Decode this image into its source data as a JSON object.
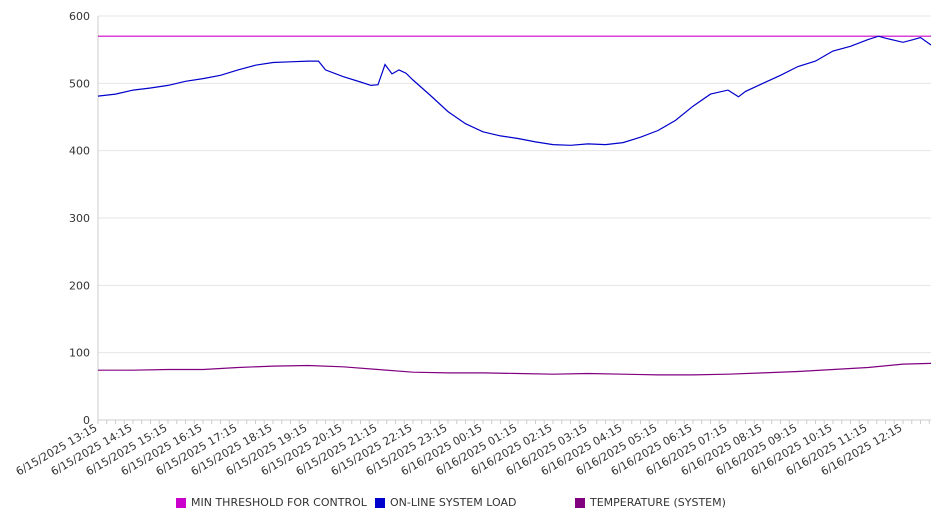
{
  "chart_data": {
    "type": "line",
    "title": "",
    "xlabel": "",
    "ylabel": "",
    "ylim": [
      0,
      600
    ],
    "yticks": [
      0,
      100,
      200,
      300,
      400,
      500,
      600
    ],
    "grid": true,
    "legend_position": "bottom",
    "x_labels": [
      "6/15/2025 13:15",
      "6/15/2025 14:15",
      "6/15/2025 15:15",
      "6/15/2025 16:15",
      "6/15/2025 17:15",
      "6/15/2025 18:15",
      "6/15/2025 19:15",
      "6/15/2025 20:15",
      "6/15/2025 21:15",
      "6/15/2025 22:15",
      "6/15/2025 23:15",
      "6/16/2025 00:15",
      "6/16/2025 01:15",
      "6/16/2025 02:15",
      "6/16/2025 03:15",
      "6/16/2025 04:15",
      "6/16/2025 05:15",
      "6/16/2025 06:15",
      "6/16/2025 07:15",
      "6/16/2025 08:15",
      "6/16/2025 09:15",
      "6/16/2025 10:15",
      "6/16/2025 11:15",
      "6/16/2025 12:15"
    ],
    "x_end": 23.8,
    "series": [
      {
        "name": "MIN THRESHOLD FOR CONTROL",
        "color": "#cc00cc",
        "x": [
          0,
          23.8
        ],
        "values": [
          570,
          570
        ]
      },
      {
        "name": "ON-LINE SYSTEM LOAD",
        "color": "#0000cc",
        "x": [
          0,
          0.5,
          1,
          1.5,
          2,
          2.5,
          3,
          3.5,
          4,
          4.5,
          5,
          5.5,
          6,
          6.3,
          6.5,
          7,
          7.5,
          7.8,
          8,
          8.2,
          8.4,
          8.6,
          8.8,
          9,
          9.5,
          10,
          10.5,
          11,
          11.5,
          12,
          12.5,
          13,
          13.5,
          14,
          14.5,
          15,
          15.5,
          16,
          16.5,
          17,
          17.5,
          18,
          18.3,
          18.5,
          19,
          19.5,
          20,
          20.5,
          20.9,
          21,
          21.5,
          22,
          22.3,
          22.5,
          23,
          23.3,
          23.5,
          23.8
        ],
        "values": [
          481,
          484,
          490,
          493,
          497,
          503,
          507,
          512,
          520,
          527,
          531,
          532,
          533,
          533,
          520,
          510,
          502,
          497,
          498,
          528,
          514,
          520,
          515,
          505,
          482,
          458,
          440,
          428,
          422,
          418,
          413,
          409,
          408,
          410,
          409,
          412,
          420,
          430,
          445,
          466,
          484,
          490,
          480,
          488,
          500,
          512,
          525,
          533,
          545,
          548,
          555,
          565,
          570,
          567,
          561,
          565,
          568,
          557
        ]
      },
      {
        "name": "TEMPERATURE (SYSTEM)",
        "color": "#800080",
        "x": [
          0,
          1,
          2,
          3,
          4,
          5,
          6,
          7,
          8,
          9,
          10,
          11,
          12,
          13,
          14,
          15,
          16,
          17,
          18,
          19,
          20,
          21,
          22,
          23,
          23.8
        ],
        "values": [
          74,
          74,
          75,
          75,
          78,
          80,
          81,
          79,
          75,
          71,
          70,
          70,
          69,
          68,
          69,
          68,
          67,
          67,
          68,
          70,
          72,
          75,
          78,
          83,
          84
        ]
      }
    ]
  }
}
